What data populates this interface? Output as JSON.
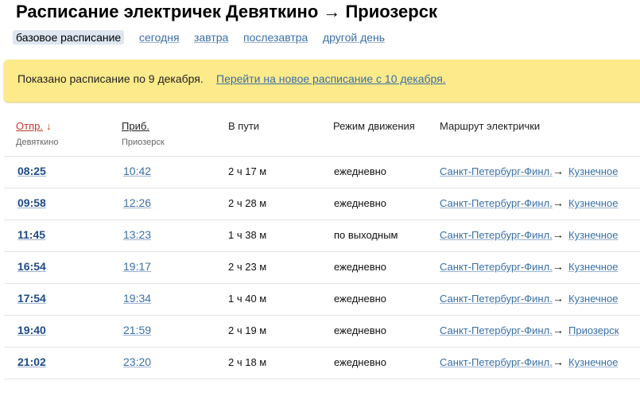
{
  "header": {
    "title": "Расписание электричек Девяткино → Приозерск",
    "tabs": [
      "базовое расписание",
      "сегодня",
      "завтра",
      "послезавтра",
      "другой день"
    ]
  },
  "notice": {
    "text": "Показано расписание по 9 декабря.",
    "link": "Перейти на новое расписание с 10 декабря."
  },
  "table": {
    "columns": [
      {
        "label": "Отпр.",
        "sort": "↓",
        "sub": "Девяткино"
      },
      {
        "label": "Приб.",
        "sub": "Приозерск"
      },
      {
        "label": "В пути"
      },
      {
        "label": "Режим движения"
      },
      {
        "label": "Маршрут электрички"
      }
    ],
    "route_arrow": "→",
    "rows": [
      [
        "08:25",
        "10:42",
        "2 ч 17 м",
        "ежедневно",
        "Санкт-Петербург-Финл.",
        "Кузнечное"
      ],
      [
        "09:58",
        "12:26",
        "2 ч 28 м",
        "ежедневно",
        "Санкт-Петербург-Финл.",
        "Кузнечное"
      ],
      [
        "11:45",
        "13:23",
        "1 ч 38 м",
        "по выходным",
        "Санкт-Петербург-Финл.",
        "Кузнечное"
      ],
      [
        "16:54",
        "19:17",
        "2 ч 23 м",
        "ежедневно",
        "Санкт-Петербург-Финл.",
        "Кузнечное"
      ],
      [
        "17:54",
        "19:34",
        "1 ч 40 м",
        "ежедневно",
        "Санкт-Петербург-Финл.",
        "Кузнечное"
      ],
      [
        "19:40",
        "21:59",
        "2 ч 19 м",
        "ежедневно",
        "Санкт-Петербург-Финл.",
        "Приозерск"
      ],
      [
        "21:02",
        "23:20",
        "2 ч 18 м",
        "ежедневно",
        "Санкт-Петербург-Финл.",
        "Кузнечное"
      ]
    ]
  }
}
